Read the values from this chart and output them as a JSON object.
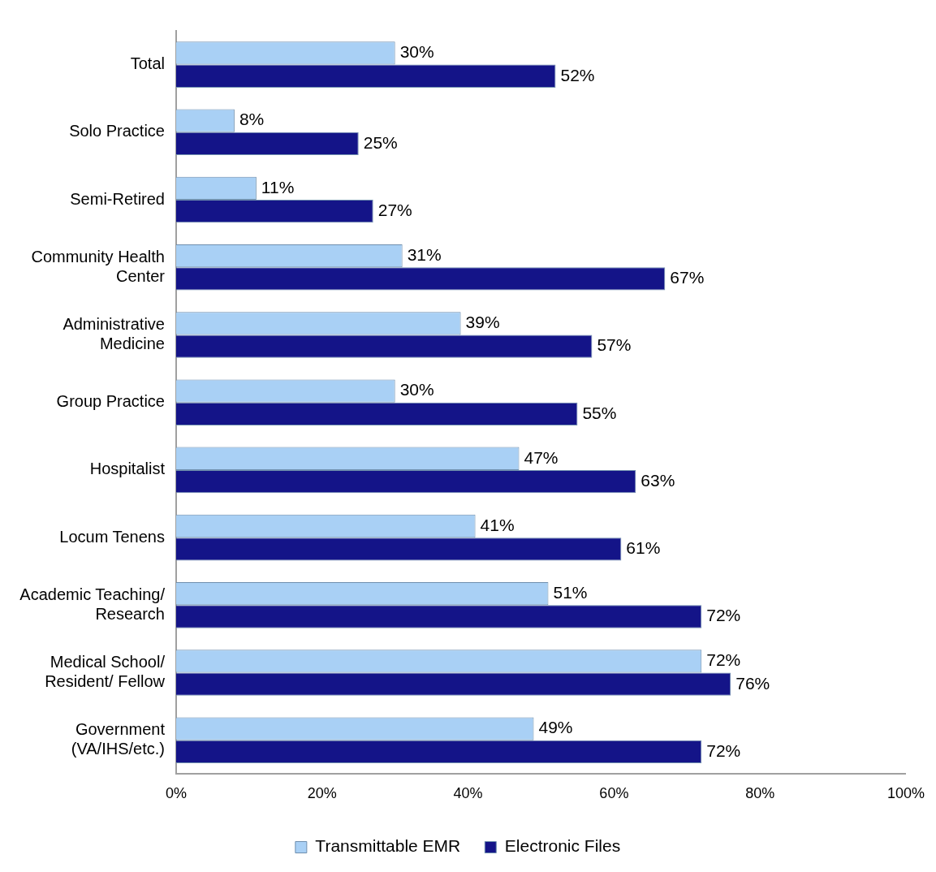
{
  "chart_data": {
    "type": "bar",
    "orientation": "horizontal",
    "categories": [
      "Total",
      "Solo Practice",
      "Semi-Retired",
      "Community Health Center",
      "Administrative Medicine",
      "Group Practice",
      "Hospitalist",
      "Locum Tenens",
      "Academic Teaching/ Research",
      "Medical School/ Resident/ Fellow",
      "Government (VA/IHS/etc.)"
    ],
    "series": [
      {
        "name": "Transmittable EMR",
        "color": "#a9d0f5",
        "values": [
          30,
          8,
          11,
          31,
          39,
          30,
          47,
          41,
          51,
          72,
          49
        ],
        "value_labels": [
          "30%",
          "8%",
          "11%",
          "31%",
          "39%",
          "30%",
          "47%",
          "41%",
          "51%",
          "72%",
          "49%"
        ]
      },
      {
        "name": "Electronic Files",
        "color": "#141488",
        "values": [
          52,
          25,
          27,
          67,
          57,
          55,
          63,
          61,
          72,
          76,
          72
        ],
        "value_labels": [
          "52%",
          "25%",
          "27%",
          "67%",
          "57%",
          "55%",
          "63%",
          "61%",
          "72%",
          "76%",
          "72%"
        ]
      }
    ],
    "xlim": [
      0,
      100
    ],
    "xticks": [
      {
        "value": 0,
        "label": "0%"
      },
      {
        "value": 20,
        "label": "20%"
      },
      {
        "value": 40,
        "label": "40%"
      },
      {
        "value": 60,
        "label": "60%"
      },
      {
        "value": 80,
        "label": "80%"
      },
      {
        "value": 100,
        "label": "100%"
      }
    ],
    "grid": false,
    "legend": "bottom"
  }
}
